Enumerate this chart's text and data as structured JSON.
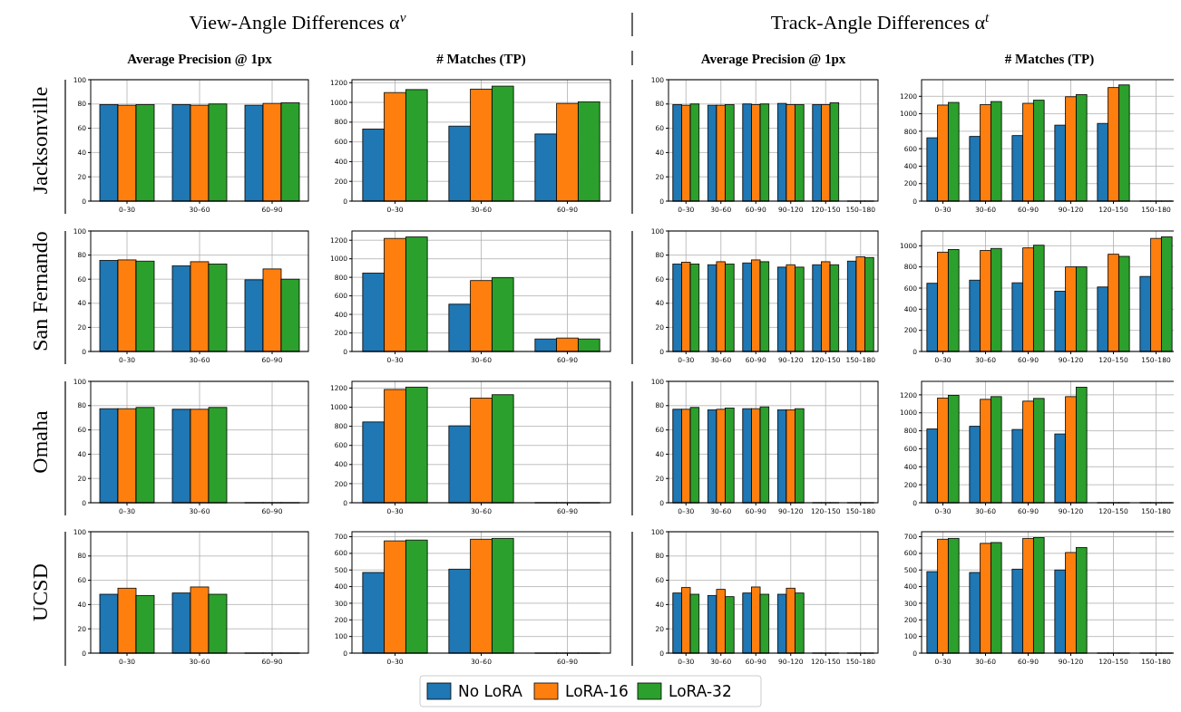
{
  "chart_data": [
    {
      "type": "bar",
      "title": "Average Precision @ 1px",
      "ylabel": "Jacksonville",
      "annotations": [
        "View-Angle Differences α$^{v}$"
      ],
      "legend": "bottom",
      "categories": [
        "0–30",
        "30–60",
        "60–90"
      ],
      "series": [
        {
          "name": "No LoRA",
          "color": "#1f77b4",
          "values": [
            79.5,
            79.5,
            79
          ]
        },
        {
          "name": "LoRA-16",
          "color": "#ff7f0e",
          "values": [
            79,
            79,
            80.5
          ]
        },
        {
          "name": "LoRA-32",
          "color": "#2ca02c",
          "values": [
            79.5,
            80,
            81
          ]
        }
      ],
      "ylim": [
        0,
        100
      ],
      "yticks": [
        0,
        20,
        40,
        60,
        80,
        100
      ],
      "grid": true
    },
    {
      "type": "bar",
      "title": "# Matches (TP)",
      "categories": [
        "0–30",
        "30–60",
        "60–90"
      ],
      "series": [
        {
          "color": "#1f77b4",
          "values": [
            730,
            760,
            680
          ]
        },
        {
          "color": "#ff7f0e",
          "values": [
            1100,
            1135,
            990
          ]
        },
        {
          "color": "#2ca02c",
          "values": [
            1130,
            1165,
            1005
          ]
        }
      ],
      "ylim": [
        0,
        1230
      ],
      "yticks": [
        0,
        200,
        400,
        600,
        800,
        1000,
        1200
      ],
      "grid": true
    },
    {
      "type": "bar",
      "title": "Average Precision @ 1px",
      "annotations": [
        "Track-Angle Differences α$^{t}$"
      ],
      "categories": [
        "0–30",
        "30–60",
        "60–90",
        "90–120",
        "120–150",
        "150–180"
      ],
      "series": [
        {
          "color": "#1f77b4",
          "values": [
            79.5,
            79,
            80,
            80.5,
            79.5,
            0
          ]
        },
        {
          "color": "#ff7f0e",
          "values": [
            79,
            79,
            79.5,
            79.5,
            79.5,
            0
          ]
        },
        {
          "color": "#2ca02c",
          "values": [
            80,
            79.5,
            80,
            79.5,
            81,
            0
          ]
        }
      ],
      "ylim": [
        0,
        100
      ],
      "yticks": [
        0,
        20,
        40,
        60,
        80,
        100
      ],
      "grid": true
    },
    {
      "type": "bar",
      "title": "# Matches (TP)",
      "categories": [
        "0–30",
        "30–60",
        "60–90",
        "90–120",
        "120–150",
        "150–180"
      ],
      "series": [
        {
          "color": "#1f77b4",
          "values": [
            725,
            740,
            750,
            870,
            890,
            0
          ]
        },
        {
          "color": "#ff7f0e",
          "values": [
            1100,
            1105,
            1120,
            1195,
            1300,
            0
          ]
        },
        {
          "color": "#2ca02c",
          "values": [
            1130,
            1140,
            1155,
            1220,
            1330,
            0
          ]
        }
      ],
      "ylim": [
        0,
        1390
      ],
      "yticks": [
        0,
        200,
        400,
        600,
        800,
        1000,
        1200
      ],
      "grid": true
    },
    {
      "type": "bar",
      "ylabel": "San Fernando",
      "categories": [
        "0–30",
        "30–60",
        "60–90"
      ],
      "series": [
        {
          "color": "#1f77b4",
          "values": [
            75.5,
            71,
            59.5
          ]
        },
        {
          "color": "#ff7f0e",
          "values": [
            76,
            74.5,
            68.5
          ]
        },
        {
          "color": "#2ca02c",
          "values": [
            75,
            72.5,
            60
          ]
        }
      ],
      "ylim": [
        0,
        100
      ],
      "yticks": [
        0,
        20,
        40,
        60,
        80,
        100
      ],
      "grid": true
    },
    {
      "type": "bar",
      "categories": [
        "0–30",
        "30–60",
        "60–90"
      ],
      "series": [
        {
          "color": "#1f77b4",
          "values": [
            845,
            510,
            135
          ]
        },
        {
          "color": "#ff7f0e",
          "values": [
            1220,
            765,
            145
          ]
        },
        {
          "color": "#2ca02c",
          "values": [
            1235,
            795,
            135
          ]
        }
      ],
      "ylim": [
        0,
        1300
      ],
      "yticks": [
        0,
        200,
        400,
        600,
        800,
        1000,
        1200
      ],
      "grid": true
    },
    {
      "type": "bar",
      "categories": [
        "0–30",
        "30–60",
        "60–90",
        "90–120",
        "120–150",
        "150–180"
      ],
      "series": [
        {
          "color": "#1f77b4",
          "values": [
            72.5,
            72,
            73.5,
            70,
            72,
            75
          ]
        },
        {
          "color": "#ff7f0e",
          "values": [
            74,
            74.5,
            76,
            72,
            74.5,
            78.5
          ]
        },
        {
          "color": "#2ca02c",
          "values": [
            72.5,
            72.5,
            74.5,
            70,
            72,
            78
          ]
        }
      ],
      "ylim": [
        0,
        100
      ],
      "yticks": [
        0,
        20,
        40,
        60,
        80,
        100
      ],
      "grid": true
    },
    {
      "type": "bar",
      "categories": [
        "0–30",
        "30–60",
        "60–90",
        "90–120",
        "120–150",
        "150–180"
      ],
      "series": [
        {
          "color": "#1f77b4",
          "values": [
            645,
            675,
            650,
            570,
            610,
            710
          ]
        },
        {
          "color": "#ff7f0e",
          "values": [
            940,
            955,
            980,
            800,
            920,
            1070
          ]
        },
        {
          "color": "#2ca02c",
          "values": [
            965,
            975,
            1005,
            800,
            900,
            1085
          ]
        }
      ],
      "ylim": [
        0,
        1140
      ],
      "yticks": [
        0,
        200,
        400,
        600,
        800,
        1000
      ],
      "grid": true
    },
    {
      "type": "bar",
      "ylabel": "Omaha",
      "categories": [
        "0–30",
        "30–60",
        "60–90"
      ],
      "series": [
        {
          "color": "#1f77b4",
          "values": [
            77.5,
            77,
            0
          ]
        },
        {
          "color": "#ff7f0e",
          "values": [
            77.5,
            77,
            0
          ]
        },
        {
          "color": "#2ca02c",
          "values": [
            78.5,
            78.5,
            0
          ]
        }
      ],
      "ylim": [
        0,
        100
      ],
      "yticks": [
        0,
        20,
        40,
        60,
        80,
        100
      ],
      "grid": true
    },
    {
      "type": "bar",
      "categories": [
        "0–30",
        "30–60",
        "60–90"
      ],
      "series": [
        {
          "color": "#1f77b4",
          "values": [
            845,
            805,
            0
          ]
        },
        {
          "color": "#ff7f0e",
          "values": [
            1185,
            1095,
            0
          ]
        },
        {
          "color": "#2ca02c",
          "values": [
            1210,
            1130,
            0
          ]
        }
      ],
      "ylim": [
        0,
        1270
      ],
      "yticks": [
        0,
        200,
        400,
        600,
        800,
        1000,
        1200
      ],
      "grid": true
    },
    {
      "type": "bar",
      "categories": [
        "0–30",
        "30–60",
        "60–90",
        "90–120",
        "120–150",
        "150–180"
      ],
      "series": [
        {
          "color": "#1f77b4",
          "values": [
            77,
            76.5,
            77.5,
            76.5,
            0,
            0
          ]
        },
        {
          "color": "#ff7f0e",
          "values": [
            77,
            77,
            77.5,
            76.5,
            0,
            0
          ]
        },
        {
          "color": "#2ca02c",
          "values": [
            78.5,
            78,
            79,
            77.5,
            0,
            0
          ]
        }
      ],
      "ylim": [
        0,
        100
      ],
      "yticks": [
        0,
        20,
        40,
        60,
        80,
        100
      ],
      "grid": true
    },
    {
      "type": "bar",
      "categories": [
        "0–30",
        "30–60",
        "60–90",
        "90–120",
        "120–150",
        "150–180"
      ],
      "series": [
        {
          "color": "#1f77b4",
          "values": [
            820,
            850,
            815,
            765,
            0,
            0
          ]
        },
        {
          "color": "#ff7f0e",
          "values": [
            1165,
            1150,
            1130,
            1180,
            0,
            0
          ]
        },
        {
          "color": "#2ca02c",
          "values": [
            1195,
            1180,
            1160,
            1285,
            0,
            0
          ]
        }
      ],
      "ylim": [
        0,
        1350
      ],
      "yticks": [
        0,
        200,
        400,
        600,
        800,
        1000,
        1200
      ],
      "grid": true
    },
    {
      "type": "bar",
      "ylabel": "UCSD",
      "categories": [
        "0–30",
        "30–60",
        "60–90"
      ],
      "series": [
        {
          "color": "#1f77b4",
          "values": [
            48.5,
            49.5,
            0
          ]
        },
        {
          "color": "#ff7f0e",
          "values": [
            53.5,
            54.5,
            0
          ]
        },
        {
          "color": "#2ca02c",
          "values": [
            47.5,
            48.5,
            0
          ]
        }
      ],
      "ylim": [
        0,
        100
      ],
      "yticks": [
        0,
        20,
        40,
        60,
        80,
        100
      ],
      "grid": true
    },
    {
      "type": "bar",
      "categories": [
        "0–30",
        "30–60",
        "60–90"
      ],
      "series": [
        {
          "color": "#1f77b4",
          "values": [
            485,
            505,
            0
          ]
        },
        {
          "color": "#ff7f0e",
          "values": [
            675,
            685,
            0
          ]
        },
        {
          "color": "#2ca02c",
          "values": [
            680,
            690,
            0
          ]
        }
      ],
      "ylim": [
        0,
        730
      ],
      "yticks": [
        0,
        100,
        200,
        300,
        400,
        500,
        600,
        700
      ],
      "grid": true
    },
    {
      "type": "bar",
      "categories": [
        "0–30",
        "30–60",
        "60–90",
        "90–120",
        "120–150",
        "150–180"
      ],
      "series": [
        {
          "color": "#1f77b4",
          "values": [
            49.5,
            47.5,
            49.5,
            48.5,
            0,
            0
          ]
        },
        {
          "color": "#ff7f0e",
          "values": [
            54,
            52.5,
            54.5,
            53.5,
            0,
            0
          ]
        },
        {
          "color": "#2ca02c",
          "values": [
            48.5,
            46.5,
            48.5,
            49.5,
            0,
            0
          ]
        }
      ],
      "ylim": [
        0,
        100
      ],
      "yticks": [
        0,
        20,
        40,
        60,
        80,
        100
      ],
      "grid": true
    },
    {
      "type": "bar",
      "categories": [
        "0–30",
        "30–60",
        "60–90",
        "90–120",
        "120–150",
        "150–180"
      ],
      "series": [
        {
          "color": "#1f77b4",
          "values": [
            490,
            485,
            505,
            500,
            0,
            0
          ]
        },
        {
          "color": "#ff7f0e",
          "values": [
            685,
            660,
            690,
            605,
            0,
            0
          ]
        },
        {
          "color": "#2ca02c",
          "values": [
            690,
            665,
            695,
            635,
            0,
            0
          ]
        }
      ],
      "ylim": [
        0,
        730
      ],
      "yticks": [
        0,
        100,
        200,
        300,
        400,
        500,
        600,
        700
      ],
      "grid": true
    }
  ]
}
